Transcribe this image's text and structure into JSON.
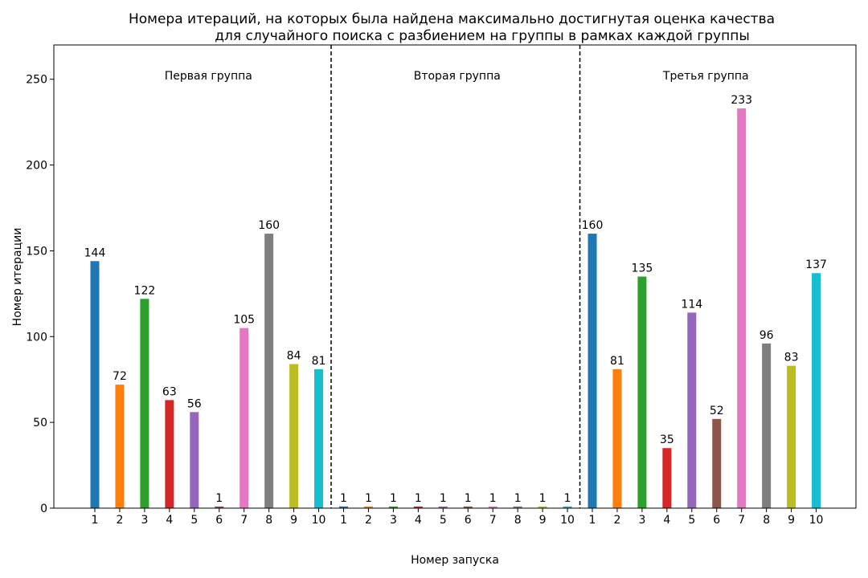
{
  "chart_data": {
    "type": "bar",
    "title_line1": "Номера итераций, на которых была найдена максимально достигнутая оценка качества",
    "title_line2": "для случайного поиска с разбиением на группы в рамках каждой группы",
    "xlabel": "Номер запуска",
    "ylabel": "Номер итерации",
    "ylim": [
      0,
      270
    ],
    "yticks": [
      0,
      50,
      100,
      150,
      200,
      250
    ],
    "categories": [
      "1",
      "2",
      "3",
      "4",
      "5",
      "6",
      "7",
      "8",
      "9",
      "10"
    ],
    "bar_colors": [
      "#1f77b4",
      "#ff7f0e",
      "#2ca02c",
      "#d62728",
      "#9467bd",
      "#8c564b",
      "#e377c2",
      "#7f7f7f",
      "#bcbd22",
      "#17becf"
    ],
    "separator_style": "dashed",
    "groups": [
      {
        "name": "Первая группа",
        "values": [
          144,
          72,
          122,
          63,
          56,
          1,
          105,
          160,
          84,
          81
        ]
      },
      {
        "name": "Вторая группа",
        "values": [
          1,
          1,
          1,
          1,
          1,
          1,
          1,
          1,
          1,
          1
        ]
      },
      {
        "name": "Третья группа",
        "values": [
          160,
          81,
          135,
          35,
          114,
          52,
          233,
          96,
          83,
          137
        ]
      }
    ]
  }
}
